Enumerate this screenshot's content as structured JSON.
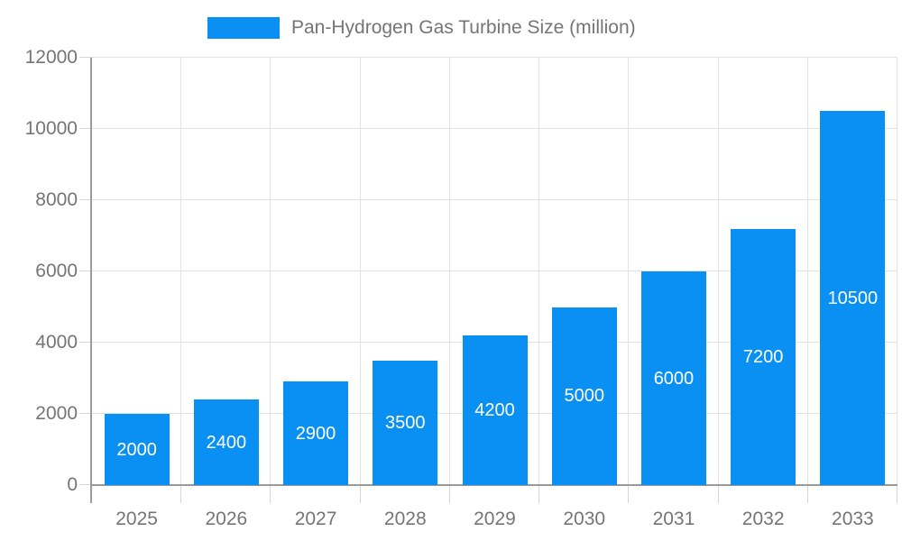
{
  "chart_data": {
    "type": "bar",
    "title": "",
    "categories": [
      "2025",
      "2026",
      "2027",
      "2028",
      "2029",
      "2030",
      "2031",
      "2032",
      "2033"
    ],
    "series": [
      {
        "name": "Pan-Hydrogen Gas Turbine Size (million)",
        "values": [
          2000,
          2400,
          2900,
          3500,
          4200,
          5000,
          6000,
          7200,
          10500
        ]
      }
    ],
    "xlabel": "",
    "ylabel": "",
    "ylim": [
      0,
      12000
    ],
    "yticks": [
      0,
      2000,
      4000,
      6000,
      8000,
      10000,
      12000
    ],
    "grid": true,
    "legend_position": "top-center",
    "bar_value_labels": "inside-center",
    "colors": {
      "bar": "#0a90f2",
      "bar_label": "#ffffff",
      "axis_text": "#757575",
      "grid_line": "#e2e2e2",
      "tick_line": "#d6d6d6",
      "axis_line": "#9a9a9a"
    }
  }
}
